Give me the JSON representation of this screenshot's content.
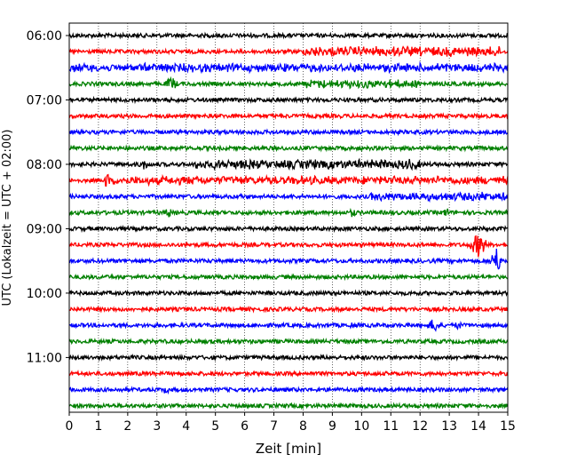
{
  "chart_data": {
    "type": "line",
    "subtype": "helicorder",
    "xlabel": "Zeit  [min]",
    "ylabel": "UTC (Lokalzeit = UTC + 02:00)",
    "xlim": [
      0,
      15
    ],
    "x_ticks": [
      0,
      1,
      2,
      3,
      4,
      5,
      6,
      7,
      8,
      9,
      10,
      11,
      12,
      13,
      14,
      15
    ],
    "y_tick_labels": [
      "06:00",
      "07:00",
      "08:00",
      "09:00",
      "10:00",
      "11:00"
    ],
    "grid": "vertical dotted at each minute",
    "trace_colors": [
      "#000000",
      "#ff0000",
      "#0000ff",
      "#008000"
    ],
    "trace_minutes_per_line": 15,
    "traces": [
      {
        "start": "06:00",
        "color": "#000000"
      },
      {
        "start": "06:15",
        "color": "#ff0000"
      },
      {
        "start": "06:30",
        "color": "#0000ff"
      },
      {
        "start": "06:45",
        "color": "#008000"
      },
      {
        "start": "07:00",
        "color": "#000000"
      },
      {
        "start": "07:15",
        "color": "#ff0000"
      },
      {
        "start": "07:30",
        "color": "#0000ff"
      },
      {
        "start": "07:45",
        "color": "#008000"
      },
      {
        "start": "08:00",
        "color": "#000000"
      },
      {
        "start": "08:15",
        "color": "#ff0000"
      },
      {
        "start": "08:30",
        "color": "#0000ff"
      },
      {
        "start": "08:45",
        "color": "#008000"
      },
      {
        "start": "09:00",
        "color": "#000000"
      },
      {
        "start": "09:15",
        "color": "#ff0000"
      },
      {
        "start": "09:30",
        "color": "#0000ff"
      },
      {
        "start": "09:45",
        "color": "#008000"
      },
      {
        "start": "10:00",
        "color": "#000000"
      },
      {
        "start": "10:15",
        "color": "#ff0000"
      },
      {
        "start": "10:30",
        "color": "#0000ff"
      },
      {
        "start": "10:45",
        "color": "#008000"
      },
      {
        "start": "11:00",
        "color": "#000000"
      },
      {
        "start": "11:15",
        "color": "#ff0000"
      },
      {
        "start": "11:30",
        "color": "#0000ff"
      },
      {
        "start": "11:45",
        "color": "#008000"
      }
    ]
  }
}
